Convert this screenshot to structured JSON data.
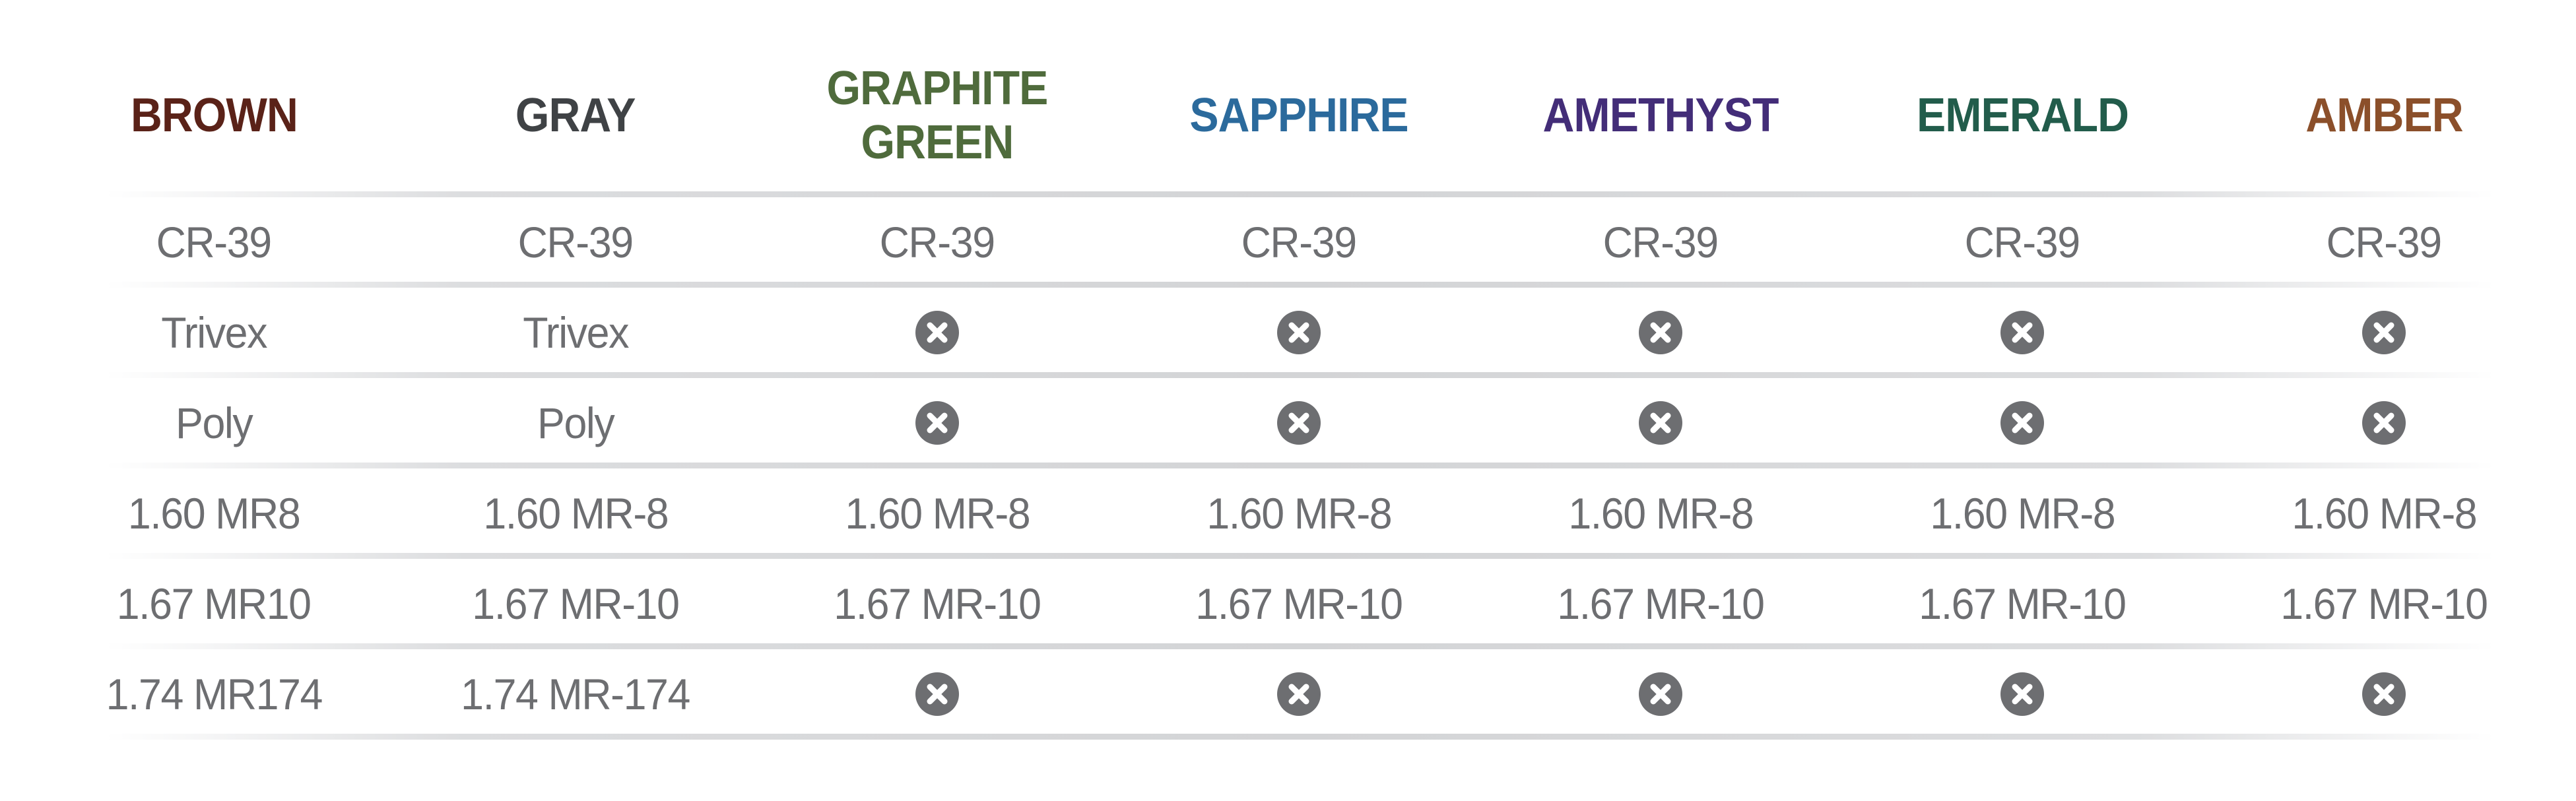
{
  "columns": [
    {
      "label": "BROWN",
      "color": "#5a2218"
    },
    {
      "label": "GRAY",
      "color": "#3f4245"
    },
    {
      "label": "GRAPHITE GREEN",
      "color": "#4f6b3c"
    },
    {
      "label": "SAPPHIRE",
      "color": "#2b6a9c"
    },
    {
      "label": "AMETHYST",
      "color": "#432d78"
    },
    {
      "label": "EMERALD",
      "color": "#225c4b"
    },
    {
      "label": "AMBER",
      "color": "#8b4f2a"
    }
  ],
  "unavailable_icon": "x-circle-icon",
  "icon_color": "#6d6e71",
  "rows": [
    [
      "CR-39",
      "CR-39",
      "CR-39",
      "CR-39",
      "CR-39",
      "CR-39",
      "CR-39"
    ],
    [
      "Trivex",
      "Trivex",
      null,
      null,
      null,
      null,
      null
    ],
    [
      "Poly",
      "Poly",
      null,
      null,
      null,
      null,
      null
    ],
    [
      "1.60 MR8",
      "1.60 MR-8",
      "1.60 MR-8",
      "1.60 MR-8",
      "1.60 MR-8",
      "1.60 MR-8",
      "1.60 MR-8"
    ],
    [
      "1.67 MR10",
      "1.67 MR-10",
      "1.67 MR-10",
      "1.67 MR-10",
      "1.67 MR-10",
      "1.67 MR-10",
      "1.67 MR-10"
    ],
    [
      "1.74 MR174",
      "1.74 MR-174",
      null,
      null,
      null,
      null,
      null
    ]
  ]
}
